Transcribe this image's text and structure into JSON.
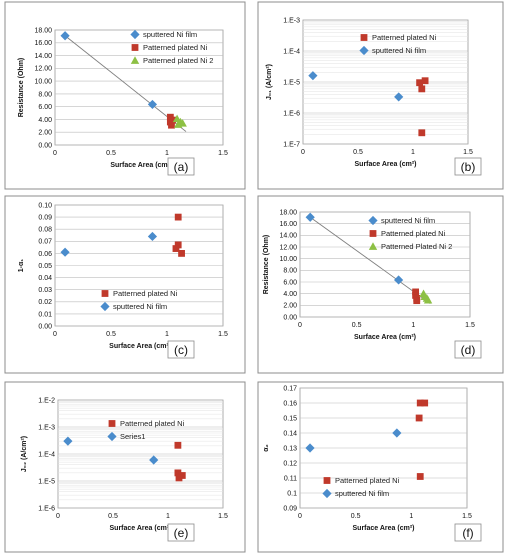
{
  "colors": {
    "sputtered": "#4a8ccc",
    "patterned": "#c0392b",
    "patterned2": "#8dc044",
    "grid": "#bdbdbd"
  },
  "chart_data": [
    {
      "id": "a",
      "type": "scatter",
      "panel_label": "(a)",
      "xlabel": "Surface Area (cm",
      "ylabel": "Resistance (Ohm)",
      "xlim": [
        0,
        1.5
      ],
      "ylim": [
        0,
        18
      ],
      "yscale": "linear",
      "xticks": [
        {
          "v": 0,
          "label": "0"
        },
        {
          "v": 0.5,
          "label": "0.5"
        },
        {
          "v": 1,
          "label": "1"
        },
        {
          "v": 1.5,
          "label": "1.5"
        }
      ],
      "yticks": [
        {
          "v": 0,
          "label": "0.00"
        },
        {
          "v": 2,
          "label": "2.00"
        },
        {
          "v": 4,
          "label": "4.00"
        },
        {
          "v": 6,
          "label": "6.00"
        },
        {
          "v": 8,
          "label": "8.00"
        },
        {
          "v": 10,
          "label": "10.00"
        },
        {
          "v": 12,
          "label": "12.00"
        },
        {
          "v": 14,
          "label": "14.00"
        },
        {
          "v": 16,
          "label": "16.00"
        },
        {
          "v": 18,
          "label": "18.00"
        }
      ],
      "grid": true,
      "legend_position": "top-right",
      "series": [
        {
          "name": "sputtered Ni film",
          "marker": "diamond",
          "color_key": "sputtered",
          "points": [
            [
              0.09,
              17.1
            ],
            [
              0.87,
              6.35
            ]
          ]
        },
        {
          "name": "Patterned plated Ni",
          "marker": "square",
          "color_key": "patterned",
          "points": [
            [
              1.03,
              4.35
            ],
            [
              1.03,
              3.6
            ],
            [
              1.04,
              3.1
            ],
            [
              1.05,
              3.9
            ]
          ]
        },
        {
          "name": "Patterned plated Ni 2",
          "marker": "triangle",
          "color_key": "patterned2",
          "points": [
            [
              1.09,
              4.1
            ],
            [
              1.12,
              3.6
            ],
            [
              1.14,
              3.4
            ],
            [
              1.1,
              3.2
            ]
          ]
        }
      ],
      "trendline": [
        [
          0.09,
          17.1
        ],
        [
          1.17,
          2.1
        ]
      ]
    },
    {
      "id": "b",
      "type": "scatter",
      "panel_label": "(b)",
      "xlabel": "Surface Area (cm²)",
      "ylabel": "J₀₁ (A/cm²)",
      "xlim": [
        0,
        1.5
      ],
      "ylim": [
        1e-07,
        0.001
      ],
      "yscale": "log",
      "xticks": [
        {
          "v": 0,
          "label": "0"
        },
        {
          "v": 0.5,
          "label": "0.5"
        },
        {
          "v": 1,
          "label": "1"
        },
        {
          "v": 1.5,
          "label": "1.5"
        }
      ],
      "yticks": [
        {
          "v": 1e-07,
          "label": "1.E-7"
        },
        {
          "v": 1e-06,
          "label": "1.E-6"
        },
        {
          "v": 1e-05,
          "label": "1.E-5"
        },
        {
          "v": 0.0001,
          "label": "1.E-4"
        },
        {
          "v": 0.001,
          "label": "1.E-3"
        }
      ],
      "grid": true,
      "legend_position": "top-right",
      "series": [
        {
          "name": "Patterned plated Ni",
          "marker": "square",
          "color_key": "patterned",
          "points": [
            [
              1.06,
              9.5e-06
            ],
            [
              1.11,
              1.1e-05
            ],
            [
              1.08,
              6e-06
            ],
            [
              1.08,
              2.3e-07
            ]
          ]
        },
        {
          "name": "sputtered Ni film",
          "marker": "diamond",
          "color_key": "sputtered",
          "points": [
            [
              0.09,
              1.6e-05
            ],
            [
              0.87,
              3.3e-06
            ]
          ]
        }
      ]
    },
    {
      "id": "c",
      "type": "scatter",
      "panel_label": "(c)",
      "xlabel": "Surface Area (cm²",
      "ylabel": "1-α₁",
      "xlim": [
        0,
        1.5
      ],
      "ylim": [
        0,
        0.1
      ],
      "yscale": "linear",
      "xticks": [
        {
          "v": 0,
          "label": "0"
        },
        {
          "v": 0.5,
          "label": "0.5"
        },
        {
          "v": 1,
          "label": "1"
        },
        {
          "v": 1.5,
          "label": "1.5"
        }
      ],
      "yticks": [
        {
          "v": 0,
          "label": "0.00"
        },
        {
          "v": 0.01,
          "label": "0.01"
        },
        {
          "v": 0.02,
          "label": "0.02"
        },
        {
          "v": 0.03,
          "label": "0.03"
        },
        {
          "v": 0.04,
          "label": "0.04"
        },
        {
          "v": 0.05,
          "label": "0.05"
        },
        {
          "v": 0.06,
          "label": "0.06"
        },
        {
          "v": 0.07,
          "label": "0.07"
        },
        {
          "v": 0.08,
          "label": "0.08"
        },
        {
          "v": 0.09,
          "label": "0.09"
        },
        {
          "v": 0.1,
          "label": "0.10"
        }
      ],
      "grid": true,
      "legend_position": "bottom-center",
      "series": [
        {
          "name": "Patterned plated Ni",
          "marker": "square",
          "color_key": "patterned",
          "points": [
            [
              1.1,
              0.09
            ],
            [
              1.1,
              0.067
            ],
            [
              1.08,
              0.064
            ],
            [
              1.13,
              0.06
            ]
          ]
        },
        {
          "name": "sputtered Ni film",
          "marker": "diamond",
          "color_key": "sputtered",
          "points": [
            [
              0.09,
              0.061
            ],
            [
              0.87,
              0.074
            ]
          ]
        }
      ]
    },
    {
      "id": "d",
      "type": "scatter",
      "panel_label": "(d)",
      "xlabel": "Surface Area (cm²)",
      "ylabel": "Resistance (Ohm)",
      "xlim": [
        0,
        1.5
      ],
      "ylim": [
        0,
        18
      ],
      "yscale": "linear",
      "xticks": [
        {
          "v": 0,
          "label": "0"
        },
        {
          "v": 0.5,
          "label": "0.5"
        },
        {
          "v": 1,
          "label": "1"
        },
        {
          "v": 1.5,
          "label": "1.5"
        }
      ],
      "yticks": [
        {
          "v": 0,
          "label": "0.00"
        },
        {
          "v": 2,
          "label": "2.00"
        },
        {
          "v": 4,
          "label": "4.00"
        },
        {
          "v": 6,
          "label": "6.00"
        },
        {
          "v": 8,
          "label": "8.00"
        },
        {
          "v": 10,
          "label": "10.00"
        },
        {
          "v": 12,
          "label": "12.00"
        },
        {
          "v": 14,
          "label": "14.00"
        },
        {
          "v": 16,
          "label": "16.00"
        },
        {
          "v": 18,
          "label": "18.00"
        }
      ],
      "grid": true,
      "legend_position": "top-right",
      "series": [
        {
          "name": "sputtered Ni film",
          "marker": "diamond",
          "color_key": "sputtered",
          "points": [
            [
              0.09,
              17.1
            ],
            [
              0.87,
              6.35
            ]
          ]
        },
        {
          "name": "Patterned plated Ni",
          "marker": "square",
          "color_key": "patterned",
          "points": [
            [
              1.02,
              4.3
            ],
            [
              1.02,
              3.7
            ],
            [
              1.03,
              3.2
            ],
            [
              1.03,
              2.8
            ]
          ]
        },
        {
          "name": "Patterned Plated Ni 2",
          "marker": "triangle",
          "color_key": "patterned2",
          "points": [
            [
              1.09,
              4.0
            ],
            [
              1.1,
              3.5
            ],
            [
              1.12,
              3.2
            ],
            [
              1.13,
              2.9
            ]
          ]
        }
      ],
      "trendline": [
        [
          0.09,
          17.1
        ],
        [
          1.15,
          2.3
        ]
      ]
    },
    {
      "id": "e",
      "type": "scatter",
      "panel_label": "(e)",
      "xlabel": "Surface Area (cm²)",
      "ylabel": "J₀₂ (A/cm²)",
      "xlim": [
        0,
        1.5
      ],
      "ylim": [
        1e-06,
        0.01
      ],
      "yscale": "log",
      "xticks": [
        {
          "v": 0,
          "label": "0"
        },
        {
          "v": 0.5,
          "label": "0.5"
        },
        {
          "v": 1,
          "label": "1"
        },
        {
          "v": 1.5,
          "label": "1.5"
        }
      ],
      "yticks": [
        {
          "v": 1e-06,
          "label": "1.E-6"
        },
        {
          "v": 1e-05,
          "label": "1.E-5"
        },
        {
          "v": 0.0001,
          "label": "1.E-4"
        },
        {
          "v": 0.001,
          "label": "1.E-3"
        },
        {
          "v": 0.01,
          "label": "1.E-2"
        }
      ],
      "grid": true,
      "legend_position": "top-center",
      "series": [
        {
          "name": "Patterned plated Ni",
          "marker": "square",
          "color_key": "patterned",
          "points": [
            [
              1.09,
              0.00021
            ],
            [
              1.09,
              2e-05
            ],
            [
              1.13,
              1.6e-05
            ],
            [
              1.1,
              1.3e-05
            ]
          ]
        },
        {
          "name": "Series1",
          "marker": "diamond",
          "color_key": "sputtered",
          "points": [
            [
              0.09,
              0.0003
            ],
            [
              0.87,
              6e-05
            ]
          ]
        }
      ]
    },
    {
      "id": "f",
      "type": "scatter",
      "panel_label": "(f)",
      "xlabel": "Surface Area (cm²)",
      "ylabel": "α₂",
      "xlim": [
        0,
        1.5
      ],
      "ylim": [
        0.09,
        0.17
      ],
      "yscale": "linear",
      "xticks": [
        {
          "v": 0,
          "label": "0"
        },
        {
          "v": 0.5,
          "label": "0.5"
        },
        {
          "v": 1,
          "label": "1"
        },
        {
          "v": 1.5,
          "label": "1.5"
        }
      ],
      "yticks": [
        {
          "v": 0.09,
          "label": "0.09"
        },
        {
          "v": 0.1,
          "label": "0.1"
        },
        {
          "v": 0.11,
          "label": "0.11"
        },
        {
          "v": 0.12,
          "label": "0.12"
        },
        {
          "v": 0.13,
          "label": "0.13"
        },
        {
          "v": 0.14,
          "label": "0.14"
        },
        {
          "v": 0.15,
          "label": "0.15"
        },
        {
          "v": 0.16,
          "label": "0.16"
        },
        {
          "v": 0.17,
          "label": "0.17"
        }
      ],
      "grid": true,
      "legend_position": "bottom-center",
      "series": [
        {
          "name": "Patterned plated Ni",
          "marker": "square",
          "color_key": "patterned",
          "points": [
            [
              1.08,
              0.16
            ],
            [
              1.12,
              0.16
            ],
            [
              1.07,
              0.15
            ],
            [
              1.08,
              0.111
            ]
          ]
        },
        {
          "name": "sputtered Ni film",
          "marker": "diamond",
          "color_key": "sputtered",
          "points": [
            [
              0.09,
              0.13
            ],
            [
              0.87,
              0.14
            ]
          ]
        }
      ]
    }
  ]
}
